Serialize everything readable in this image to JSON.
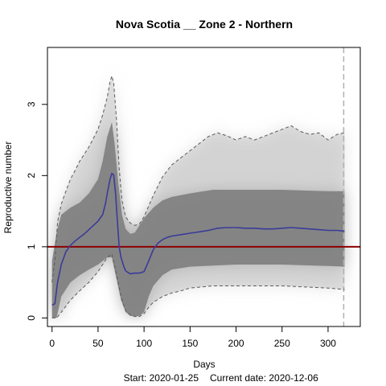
{
  "chart_data": {
    "type": "line",
    "title": "Nova Scotia __ Zone 2 - Northern",
    "xlabel": "Days",
    "ylabel": "Reproductive number",
    "xlim": [
      -5,
      335
    ],
    "ylim": [
      -0.12,
      3.8
    ],
    "x_ticks": [
      0,
      50,
      100,
      150,
      200,
      250,
      300
    ],
    "y_ticks": [
      0,
      1,
      2,
      3
    ],
    "footer_start": "Start:  2020-01-25",
    "footer_current": "Current date:  2020-12-06",
    "reference_line": {
      "y": 1,
      "color": "#8b0000"
    },
    "current_day_marker": 317,
    "colors": {
      "median": "#3b3b9a",
      "band": "#808080",
      "envelope": "#5a5a5a",
      "marker": "#b0b0b0"
    },
    "series": [
      {
        "role": "median",
        "x": [
          0,
          3,
          6,
          10,
          15,
          20,
          25,
          30,
          35,
          40,
          45,
          50,
          55,
          58,
          60,
          63,
          65,
          67,
          69,
          71,
          73,
          75,
          78,
          80,
          85,
          90,
          95,
          100,
          105,
          110,
          115,
          120,
          125,
          130,
          140,
          150,
          160,
          170,
          180,
          190,
          200,
          210,
          220,
          230,
          240,
          250,
          260,
          270,
          280,
          290,
          300,
          310,
          318
        ],
        "y": [
          0.18,
          0.2,
          0.5,
          0.75,
          0.93,
          1.02,
          1.08,
          1.13,
          1.18,
          1.24,
          1.3,
          1.36,
          1.45,
          1.6,
          1.75,
          1.95,
          2.03,
          2.01,
          1.75,
          1.35,
          1.0,
          0.85,
          0.72,
          0.66,
          0.62,
          0.63,
          0.63,
          0.65,
          0.8,
          0.96,
          1.05,
          1.1,
          1.13,
          1.15,
          1.17,
          1.19,
          1.21,
          1.23,
          1.26,
          1.27,
          1.27,
          1.26,
          1.26,
          1.25,
          1.25,
          1.26,
          1.27,
          1.26,
          1.25,
          1.24,
          1.23,
          1.23,
          1.22
        ]
      },
      {
        "role": "band_upper",
        "x": [
          0,
          5,
          10,
          20,
          30,
          40,
          50,
          55,
          60,
          65,
          68,
          72,
          76,
          80,
          85,
          90,
          95,
          100,
          110,
          120,
          130,
          150,
          175,
          200,
          250,
          300,
          318
        ],
        "y": [
          0.8,
          1.2,
          1.45,
          1.55,
          1.62,
          1.75,
          1.95,
          2.2,
          2.55,
          2.75,
          2.45,
          1.9,
          1.45,
          1.25,
          1.18,
          1.2,
          1.3,
          1.4,
          1.55,
          1.65,
          1.7,
          1.75,
          1.8,
          1.8,
          1.8,
          1.78,
          1.78
        ]
      },
      {
        "role": "band_lower",
        "x": [
          0,
          5,
          10,
          20,
          30,
          40,
          50,
          60,
          65,
          70,
          75,
          80,
          85,
          90,
          95,
          100,
          105,
          110,
          120,
          130,
          150,
          200,
          250,
          300,
          318
        ],
        "y": [
          0.0,
          0.0,
          0.3,
          0.5,
          0.6,
          0.68,
          0.75,
          0.85,
          0.85,
          0.55,
          0.25,
          0.08,
          0.03,
          0.02,
          0.03,
          0.08,
          0.3,
          0.45,
          0.6,
          0.68,
          0.72,
          0.75,
          0.75,
          0.73,
          0.72
        ]
      },
      {
        "role": "envelope_upper",
        "x": [
          0,
          3,
          6,
          10,
          15,
          20,
          25,
          30,
          40,
          50,
          55,
          60,
          63,
          65,
          67,
          70,
          73,
          76,
          80,
          85,
          90,
          95,
          100,
          110,
          120,
          130,
          140,
          150,
          160,
          170,
          180,
          190,
          200,
          210,
          220,
          230,
          240,
          250,
          260,
          270,
          280,
          290,
          300,
          310,
          318
        ],
        "y": [
          0.5,
          0.8,
          1.35,
          1.6,
          1.78,
          1.95,
          2.07,
          2.2,
          2.4,
          2.65,
          2.85,
          3.1,
          3.32,
          3.4,
          3.3,
          2.8,
          2.1,
          1.65,
          1.42,
          1.33,
          1.3,
          1.32,
          1.42,
          1.72,
          1.98,
          2.15,
          2.25,
          2.35,
          2.45,
          2.55,
          2.6,
          2.56,
          2.5,
          2.55,
          2.5,
          2.55,
          2.6,
          2.65,
          2.7,
          2.62,
          2.58,
          2.6,
          2.5,
          2.58,
          2.6
        ]
      },
      {
        "role": "envelope_lower",
        "x": [
          0,
          5,
          10,
          20,
          30,
          40,
          50,
          60,
          65,
          70,
          75,
          80,
          85,
          90,
          95,
          100,
          105,
          110,
          120,
          130,
          140,
          150,
          175,
          200,
          250,
          300,
          318
        ],
        "y": [
          0.0,
          0.0,
          0.08,
          0.25,
          0.38,
          0.5,
          0.65,
          0.85,
          0.9,
          0.62,
          0.3,
          0.1,
          0.04,
          0.02,
          0.02,
          0.06,
          0.15,
          0.22,
          0.3,
          0.35,
          0.38,
          0.42,
          0.45,
          0.45,
          0.45,
          0.42,
          0.4
        ]
      }
    ]
  }
}
